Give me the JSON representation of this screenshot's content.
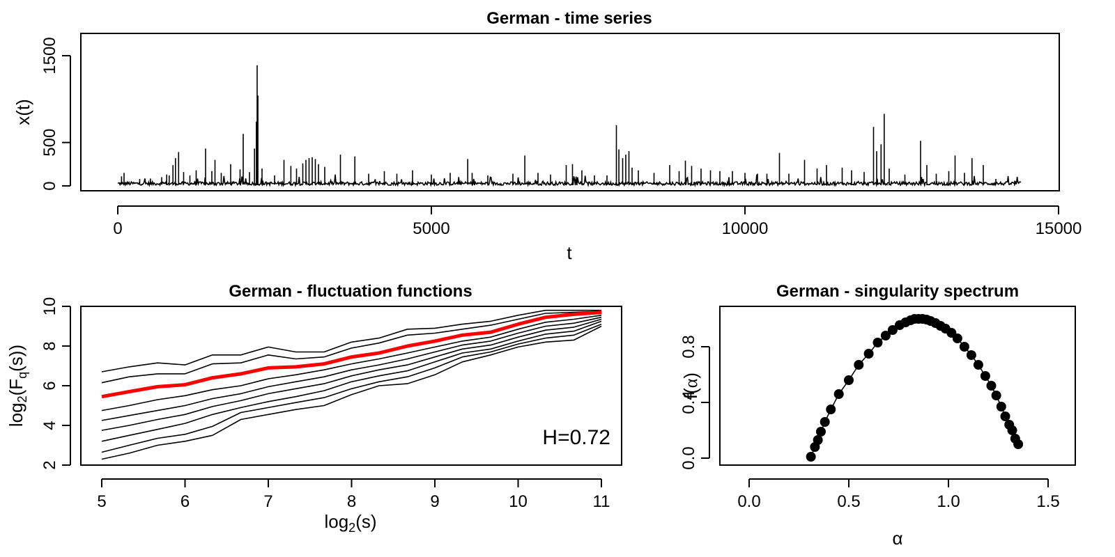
{
  "chart_data": [
    {
      "type": "line",
      "title": "German - time series",
      "xlabel": "t",
      "ylabel": "x(t)",
      "xlim": [
        0,
        15000
      ],
      "ylim": [
        0,
        1500
      ],
      "xticks": [
        "0",
        "5000",
        "10000",
        "15000"
      ],
      "yticks": [
        "0",
        "500",
        "1500"
      ],
      "n_points": 14400,
      "baseline": 25,
      "spikes": [
        {
          "t": 60,
          "v": 110
        },
        {
          "t": 100,
          "v": 150
        },
        {
          "t": 350,
          "v": 80
        },
        {
          "t": 520,
          "v": 85
        },
        {
          "t": 700,
          "v": 100
        },
        {
          "t": 780,
          "v": 130
        },
        {
          "t": 820,
          "v": 120
        },
        {
          "t": 880,
          "v": 240
        },
        {
          "t": 920,
          "v": 320
        },
        {
          "t": 970,
          "v": 390
        },
        {
          "t": 1050,
          "v": 160
        },
        {
          "t": 1150,
          "v": 120
        },
        {
          "t": 1250,
          "v": 180
        },
        {
          "t": 1400,
          "v": 430
        },
        {
          "t": 1500,
          "v": 170
        },
        {
          "t": 1550,
          "v": 300
        },
        {
          "t": 1650,
          "v": 150
        },
        {
          "t": 1800,
          "v": 250
        },
        {
          "t": 1950,
          "v": 190
        },
        {
          "t": 2000,
          "v": 600
        },
        {
          "t": 2100,
          "v": 160
        },
        {
          "t": 2180,
          "v": 430
        },
        {
          "t": 2210,
          "v": 740
        },
        {
          "t": 2222,
          "v": 1390
        },
        {
          "t": 2235,
          "v": 1040
        },
        {
          "t": 2300,
          "v": 200
        },
        {
          "t": 2500,
          "v": 120
        },
        {
          "t": 2650,
          "v": 300
        },
        {
          "t": 2760,
          "v": 230
        },
        {
          "t": 2850,
          "v": 200
        },
        {
          "t": 2950,
          "v": 260
        },
        {
          "t": 3000,
          "v": 300
        },
        {
          "t": 3050,
          "v": 320
        },
        {
          "t": 3100,
          "v": 330
        },
        {
          "t": 3150,
          "v": 310
        },
        {
          "t": 3200,
          "v": 250
        },
        {
          "t": 3300,
          "v": 220
        },
        {
          "t": 3550,
          "v": 360
        },
        {
          "t": 3780,
          "v": 340
        },
        {
          "t": 4000,
          "v": 140
        },
        {
          "t": 4250,
          "v": 170
        },
        {
          "t": 4450,
          "v": 140
        },
        {
          "t": 4700,
          "v": 180
        },
        {
          "t": 5000,
          "v": 130
        },
        {
          "t": 5300,
          "v": 150
        },
        {
          "t": 5580,
          "v": 310
        },
        {
          "t": 5650,
          "v": 150
        },
        {
          "t": 5900,
          "v": 120
        },
        {
          "t": 6300,
          "v": 140
        },
        {
          "t": 6490,
          "v": 350
        },
        {
          "t": 6700,
          "v": 150
        },
        {
          "t": 6900,
          "v": 130
        },
        {
          "t": 7150,
          "v": 240
        },
        {
          "t": 7250,
          "v": 250
        },
        {
          "t": 7400,
          "v": 180
        },
        {
          "t": 7600,
          "v": 120
        },
        {
          "t": 7800,
          "v": 120
        },
        {
          "t": 7950,
          "v": 700
        },
        {
          "t": 7990,
          "v": 420
        },
        {
          "t": 8050,
          "v": 320
        },
        {
          "t": 8100,
          "v": 360
        },
        {
          "t": 8150,
          "v": 400
        },
        {
          "t": 8200,
          "v": 210
        },
        {
          "t": 8300,
          "v": 180
        },
        {
          "t": 8550,
          "v": 150
        },
        {
          "t": 8800,
          "v": 240
        },
        {
          "t": 8950,
          "v": 170
        },
        {
          "t": 9050,
          "v": 290
        },
        {
          "t": 9150,
          "v": 230
        },
        {
          "t": 9300,
          "v": 200
        },
        {
          "t": 9450,
          "v": 180
        },
        {
          "t": 9600,
          "v": 170
        },
        {
          "t": 9800,
          "v": 170
        },
        {
          "t": 10000,
          "v": 150
        },
        {
          "t": 10200,
          "v": 140
        },
        {
          "t": 10350,
          "v": 140
        },
        {
          "t": 10550,
          "v": 380
        },
        {
          "t": 10700,
          "v": 140
        },
        {
          "t": 10950,
          "v": 300
        },
        {
          "t": 11150,
          "v": 200
        },
        {
          "t": 11300,
          "v": 240
        },
        {
          "t": 11550,
          "v": 210
        },
        {
          "t": 11700,
          "v": 180
        },
        {
          "t": 11900,
          "v": 160
        },
        {
          "t": 12050,
          "v": 680
        },
        {
          "t": 12100,
          "v": 400
        },
        {
          "t": 12170,
          "v": 480
        },
        {
          "t": 12220,
          "v": 830
        },
        {
          "t": 12300,
          "v": 200
        },
        {
          "t": 12550,
          "v": 130
        },
        {
          "t": 12800,
          "v": 520
        },
        {
          "t": 12900,
          "v": 240
        },
        {
          "t": 13050,
          "v": 140
        },
        {
          "t": 13250,
          "v": 170
        },
        {
          "t": 13350,
          "v": 350
        },
        {
          "t": 13500,
          "v": 150
        },
        {
          "t": 13620,
          "v": 320
        },
        {
          "t": 13800,
          "v": 240
        },
        {
          "t": 14000,
          "v": 80
        },
        {
          "t": 14300,
          "v": 60
        },
        {
          "t": 14420,
          "v": 70
        }
      ]
    },
    {
      "type": "line",
      "title": "German - fluctuation functions",
      "xlabel": "log2(s)",
      "ylabel": "log2(Fq(s))",
      "xlim": [
        5,
        11
      ],
      "ylim": [
        2,
        10
      ],
      "xticks": [
        "5",
        "6",
        "7",
        "8",
        "9",
        "10",
        "11"
      ],
      "yticks": [
        "2",
        "4",
        "6",
        "8",
        "10"
      ],
      "annotation": "H=0.72",
      "x": [
        5,
        5.33,
        5.67,
        6,
        6.33,
        6.67,
        7,
        7.33,
        7.67,
        8,
        8.33,
        8.67,
        9,
        9.33,
        9.67,
        10,
        10.33,
        10.67,
        11
      ],
      "series": [
        {
          "values": [
            6.7,
            6.95,
            7.15,
            7.05,
            7.55,
            7.55,
            7.95,
            7.7,
            7.7,
            8.2,
            8.4,
            8.85,
            8.9,
            9.1,
            9.25,
            9.55,
            9.8,
            9.8,
            9.8
          ]
        },
        {
          "values": [
            6.15,
            6.45,
            6.6,
            6.6,
            7.1,
            7.15,
            7.55,
            7.35,
            7.45,
            7.9,
            8.15,
            8.55,
            8.65,
            8.85,
            9.05,
            9.35,
            9.65,
            9.7,
            9.75
          ]
        },
        {
          "values": [
            5.45,
            5.7,
            5.95,
            6.05,
            6.4,
            6.6,
            6.9,
            6.95,
            7.1,
            7.45,
            7.65,
            8.0,
            8.25,
            8.55,
            8.7,
            9.1,
            9.45,
            9.6,
            9.7
          ],
          "highlight": true
        },
        {
          "values": [
            4.75,
            5.0,
            5.3,
            5.5,
            5.8,
            6.0,
            6.35,
            6.55,
            6.8,
            7.1,
            7.35,
            7.65,
            7.95,
            8.25,
            8.45,
            8.85,
            9.2,
            9.35,
            9.55
          ]
        },
        {
          "values": [
            4.25,
            4.5,
            4.75,
            5.0,
            5.35,
            5.6,
            5.95,
            6.2,
            6.45,
            6.8,
            7.05,
            7.35,
            7.7,
            8.05,
            8.25,
            8.65,
            9.0,
            9.15,
            9.45
          ]
        },
        {
          "values": [
            3.75,
            4.0,
            4.3,
            4.55,
            4.95,
            5.25,
            5.6,
            5.85,
            6.1,
            6.5,
            6.8,
            7.05,
            7.45,
            7.85,
            8.05,
            8.45,
            8.8,
            8.95,
            9.35
          ]
        },
        {
          "values": [
            3.2,
            3.5,
            3.8,
            4.1,
            4.55,
            4.9,
            5.2,
            5.45,
            5.75,
            6.2,
            6.5,
            6.75,
            7.2,
            7.65,
            7.85,
            8.25,
            8.6,
            8.75,
            9.25
          ]
        },
        {
          "values": [
            2.65,
            3.0,
            3.35,
            3.55,
            3.95,
            4.65,
            4.9,
            5.15,
            5.4,
            5.85,
            6.2,
            6.45,
            6.9,
            7.45,
            7.7,
            8.1,
            8.4,
            8.55,
            9.1
          ]
        },
        {
          "values": [
            2.3,
            2.6,
            3.0,
            3.2,
            3.5,
            4.3,
            4.55,
            4.8,
            5.0,
            5.55,
            6.0,
            6.1,
            6.55,
            7.2,
            7.55,
            7.95,
            8.2,
            8.3,
            9.0
          ]
        }
      ]
    },
    {
      "type": "scatter",
      "title": "German - singularity spectrum",
      "xlabel": "α",
      "ylabel": "f(α)",
      "xlim": [
        0,
        1.5
      ],
      "ylim": [
        0,
        1
      ],
      "xticks": [
        "0.0",
        "0.5",
        "1.0",
        "1.5"
      ],
      "yticks": [
        "0.0",
        "0.4",
        "0.8"
      ],
      "x": [
        0.31,
        0.33,
        0.345,
        0.36,
        0.38,
        0.41,
        0.45,
        0.5,
        0.55,
        0.6,
        0.645,
        0.685,
        0.72,
        0.755,
        0.785,
        0.81,
        0.83,
        0.85,
        0.87,
        0.89,
        0.91,
        0.935,
        0.96,
        0.985,
        1.015,
        1.045,
        1.08,
        1.115,
        1.15,
        1.185,
        1.215,
        1.24,
        1.265,
        1.285,
        1.305,
        1.32,
        1.335,
        1.35
      ],
      "values": [
        0.01,
        0.08,
        0.13,
        0.19,
        0.26,
        0.35,
        0.46,
        0.56,
        0.67,
        0.75,
        0.83,
        0.88,
        0.92,
        0.955,
        0.975,
        0.99,
        1.0,
        1.0,
        1.0,
        0.995,
        0.985,
        0.97,
        0.95,
        0.93,
        0.9,
        0.86,
        0.8,
        0.74,
        0.67,
        0.59,
        0.52,
        0.45,
        0.37,
        0.3,
        0.24,
        0.2,
        0.14,
        0.1
      ]
    }
  ],
  "colors": {
    "highlight": "#ff0000",
    "annotation": "#ff0000",
    "ink": "#000000"
  }
}
